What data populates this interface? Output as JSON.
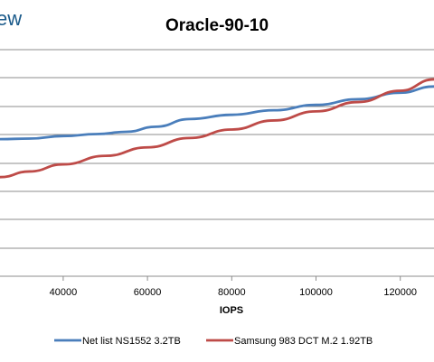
{
  "logo_text": "ew",
  "chart_data": {
    "type": "line",
    "title": "Oracle-90-10",
    "xlabel": "IOPS",
    "ylabel": "",
    "x_ticks": [
      40000,
      60000,
      80000,
      100000,
      120000
    ],
    "x_tick_labels": [
      "40000",
      "60000",
      "80000",
      "100000",
      "120000"
    ],
    "xlim": [
      25000,
      128000
    ],
    "grid": true,
    "legend_position": "bottom",
    "colors": {
      "Net list NS1552 3.2TB": "#4a7ebb",
      "Samsung 983 DCT M.2 1.92TB": "#be4b48"
    },
    "series": [
      {
        "name": "Net list NS1552 3.2TB",
        "color": "#4a7ebb",
        "points": [
          [
            25000,
            0.84
          ],
          [
            32000,
            0.86
          ],
          [
            40000,
            0.95
          ],
          [
            48000,
            1.02
          ],
          [
            55000,
            1.1
          ],
          [
            62000,
            1.28
          ],
          [
            70000,
            1.55
          ],
          [
            80000,
            1.7
          ],
          [
            90000,
            1.86
          ],
          [
            100000,
            2.05
          ],
          [
            110000,
            2.25
          ],
          [
            120000,
            2.48
          ],
          [
            128000,
            2.7
          ]
        ]
      },
      {
        "name": "Samsung 983 DCT M.2 1.92TB",
        "color": "#be4b48",
        "points": [
          [
            25000,
            -0.5
          ],
          [
            32000,
            -0.3
          ],
          [
            40000,
            -0.05
          ],
          [
            50000,
            0.25
          ],
          [
            60000,
            0.55
          ],
          [
            70000,
            0.88
          ],
          [
            80000,
            1.18
          ],
          [
            90000,
            1.5
          ],
          [
            100000,
            1.82
          ],
          [
            110000,
            2.15
          ],
          [
            120000,
            2.55
          ],
          [
            128000,
            2.95
          ]
        ]
      }
    ]
  }
}
